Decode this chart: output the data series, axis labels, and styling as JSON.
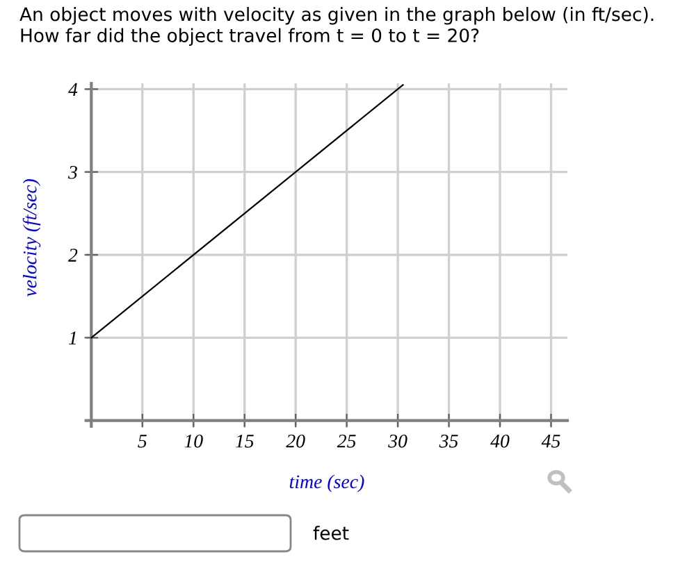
{
  "chart_data": {
    "type": "line",
    "title": "An object moves with velocity as given in the graph below (in ft/sec).\nHow far did the object travel from t = 0 to t = 20?",
    "xlabel": "time (sec)",
    "ylabel": "velocity (ft/sec)",
    "x": [
      0,
      30.5
    ],
    "series": [
      {
        "color": "#000000",
        "values": [
          1,
          4.05
        ]
      }
    ],
    "xlim": [
      -0.5,
      46.6
    ],
    "ylim": [
      -0.07,
      4.07
    ],
    "xticks": [
      {
        "value": 0,
        "label": null
      },
      5,
      10,
      15,
      20,
      25,
      30,
      35,
      40,
      45
    ],
    "yticks": [
      {
        "value": 0,
        "label": null
      },
      1,
      2,
      3,
      4
    ],
    "grid": true,
    "marker": "none",
    "line_style": "solid",
    "annotations": [
      "feet"
    ]
  }
}
